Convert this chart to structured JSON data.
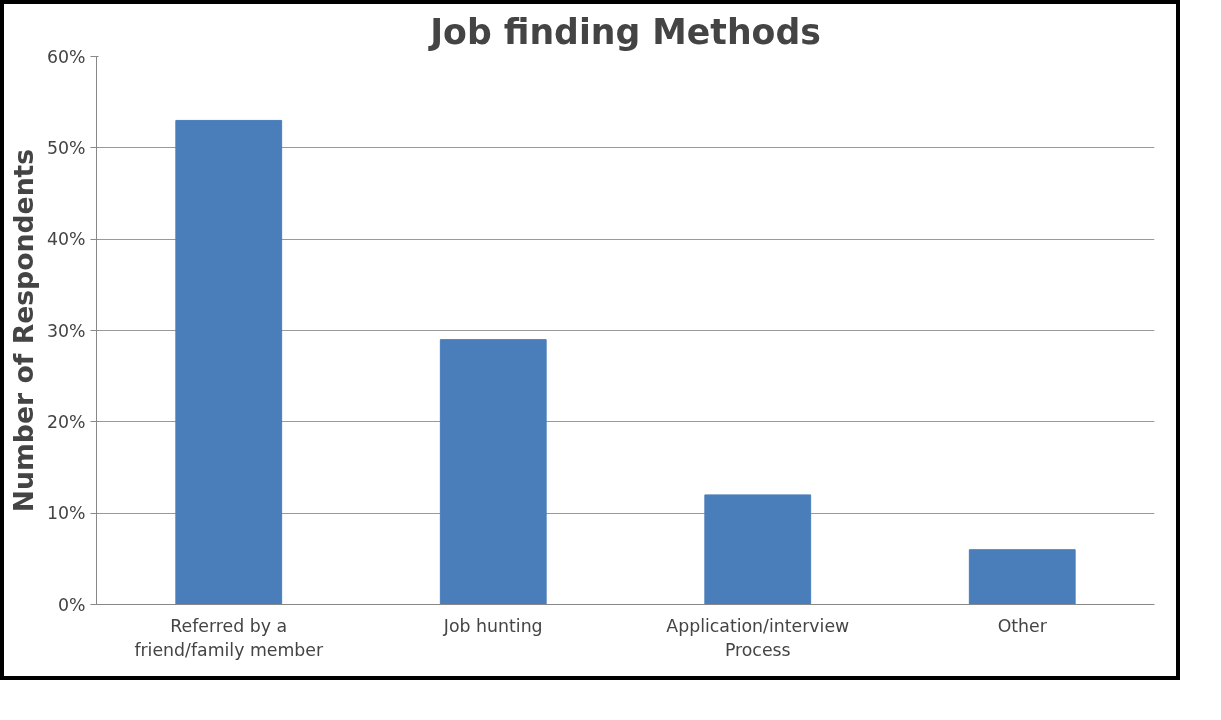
{
  "chart_data": {
    "type": "bar",
    "title": "Job finding Methods",
    "ylabel": "Number of Respondents",
    "categories": [
      "Referred by a\nfriend/family member",
      "Job hunting",
      "Application/interview\nProcess",
      "Other"
    ],
    "values": [
      53,
      29,
      12,
      6
    ],
    "color": "#4a7ebb",
    "ylim": [
      0,
      60
    ],
    "yticks": [
      {
        "value": 0,
        "label": "0%"
      },
      {
        "value": 10,
        "label": "10%"
      },
      {
        "value": 20,
        "label": "20%"
      },
      {
        "value": 30,
        "label": "30%"
      },
      {
        "value": 40,
        "label": "40%"
      },
      {
        "value": 50,
        "label": "50%"
      },
      {
        "value": 60,
        "label": "60%"
      }
    ],
    "grid": "y"
  }
}
